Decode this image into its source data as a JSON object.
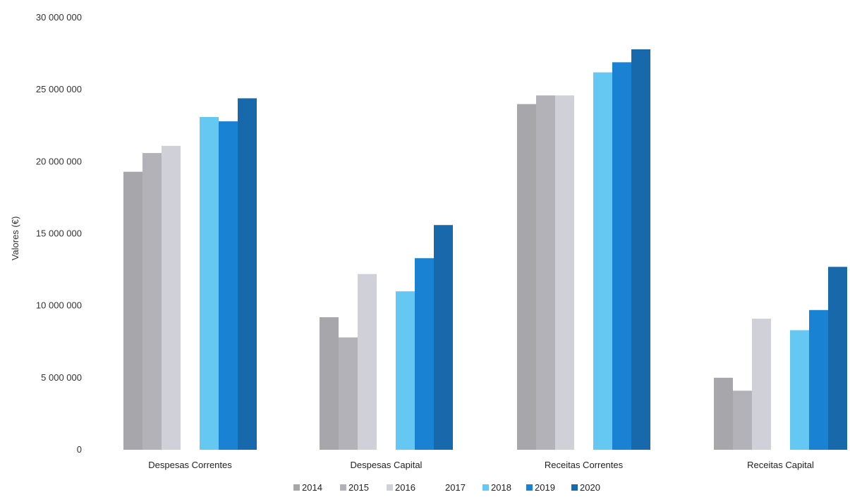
{
  "chart_data": {
    "type": "bar",
    "ylabel": "Valores (€)",
    "ylim": [
      0,
      30000000
    ],
    "yticks": [
      "0",
      "5 000 000",
      "10 000 000",
      "15 000 000",
      "20 000 000",
      "25 000 000",
      "30 000 000"
    ],
    "ytick_values": [
      0,
      5000000,
      10000000,
      15000000,
      20000000,
      25000000,
      30000000
    ],
    "grid": false,
    "legend_position": "bottom",
    "categories": [
      "Despesas Correntes",
      "Despesas Capital",
      "Receitas Correntes",
      "Receitas Capital"
    ],
    "series": [
      {
        "name": "2014",
        "color": "#a6a6ab",
        "values": [
          19300000,
          9200000,
          24000000,
          5000000
        ]
      },
      {
        "name": "2015",
        "color": "#b2b2b8",
        "values": [
          20600000,
          7800000,
          24600000,
          4100000
        ]
      },
      {
        "name": "2016",
        "color": "#d0d0d8",
        "values": [
          21100000,
          12200000,
          24600000,
          9100000
        ]
      },
      {
        "name": "2017",
        "color": "#ffffff",
        "values": [
          0,
          0,
          0,
          0
        ]
      },
      {
        "name": "2018",
        "color": "#64c8f3",
        "values": [
          23100000,
          11000000,
          26200000,
          8300000
        ]
      },
      {
        "name": "2019",
        "color": "#1a82d3",
        "values": [
          22800000,
          13300000,
          26900000,
          9700000
        ]
      },
      {
        "name": "2020",
        "color": "#1769ab",
        "values": [
          24400000,
          15600000,
          27800000,
          12700000
        ]
      }
    ]
  }
}
